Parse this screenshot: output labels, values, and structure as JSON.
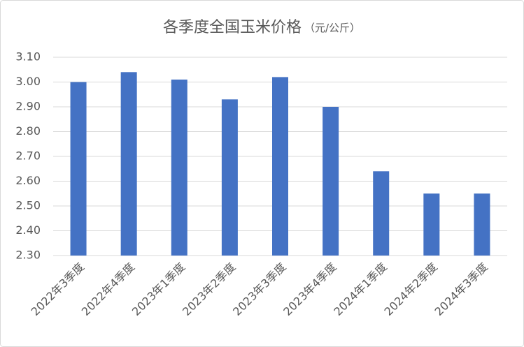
{
  "chart_data": {
    "type": "bar",
    "title": "各季度全国玉米价格",
    "unit": "（元/公斤）",
    "categories": [
      "2022年3季度",
      "2022年4季度",
      "2023年1季度",
      "2023年2季度",
      "2023年3季度",
      "2023年4季度",
      "2024年1季度",
      "2024年2季度",
      "2024年3季度"
    ],
    "values": [
      3.0,
      3.04,
      3.01,
      2.93,
      3.02,
      2.9,
      2.64,
      2.55,
      2.55
    ],
    "color": "#4472c4",
    "ylim": [
      2.3,
      3.1
    ],
    "yticks": [
      {
        "value": 2.3,
        "label": "2.30"
      },
      {
        "value": 2.4,
        "label": "2.40"
      },
      {
        "value": 2.5,
        "label": "2.50"
      },
      {
        "value": 2.6,
        "label": "2.60"
      },
      {
        "value": 2.7,
        "label": "2.70"
      },
      {
        "value": 2.8,
        "label": "2.80"
      },
      {
        "value": 2.9,
        "label": "2.90"
      },
      {
        "value": 3.0,
        "label": "3.00"
      },
      {
        "value": 3.1,
        "label": "3.10"
      }
    ],
    "grid": true
  }
}
